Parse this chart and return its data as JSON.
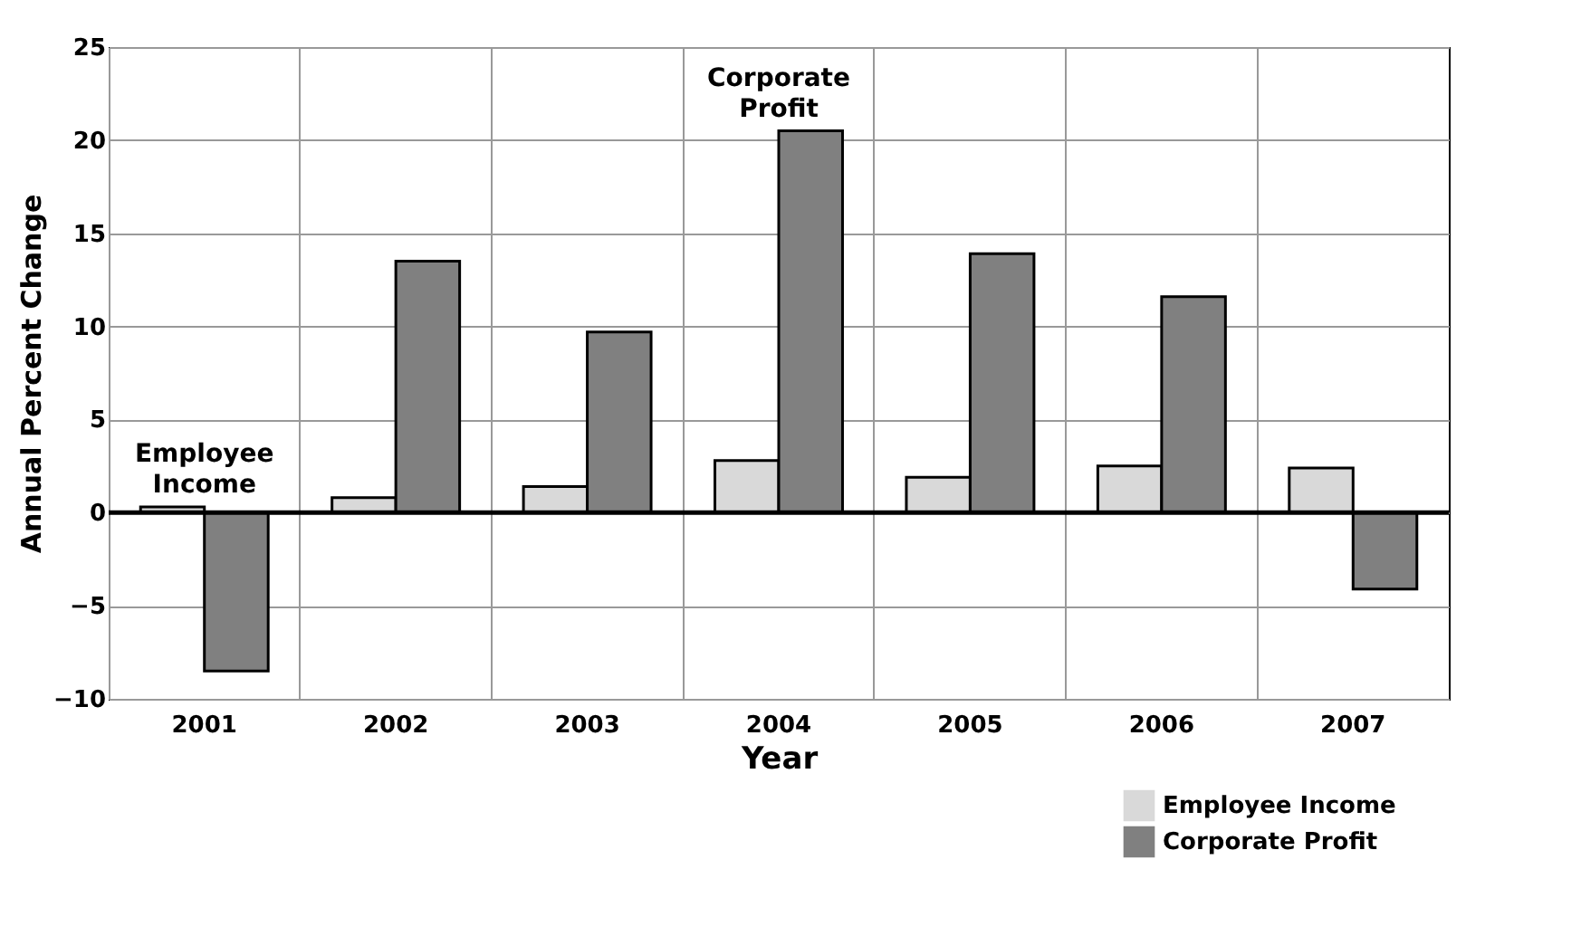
{
  "chart_data": {
    "type": "bar",
    "xlabel": "Year",
    "ylabel": "Annual Percent Change",
    "categories": [
      "2001",
      "2002",
      "2003",
      "2004",
      "2005",
      "2006",
      "2007"
    ],
    "series": [
      {
        "name": "Employee Income",
        "color": "#d9d9d9",
        "values": [
          0.3,
          0.8,
          1.4,
          2.8,
          1.9,
          2.5,
          2.4
        ]
      },
      {
        "name": "Corporate Profit",
        "color": "#808080",
        "values": [
          -8.5,
          13.5,
          9.7,
          20.5,
          13.9,
          11.6,
          -4.1
        ]
      }
    ],
    "ylim": [
      -10,
      25
    ],
    "yticks": [
      -10,
      -5,
      0,
      5,
      10,
      15,
      20,
      25
    ],
    "grid": true,
    "legend": "bottom right",
    "ref_lines": [
      {
        "axis": "y",
        "value": 0,
        "color": "#000000"
      }
    ],
    "annotations": [
      {
        "text": "Employee Income",
        "x": "2001",
        "y": 0.3
      },
      {
        "text": "Corporate Profit",
        "x": "2004",
        "y": 20.5
      }
    ]
  }
}
